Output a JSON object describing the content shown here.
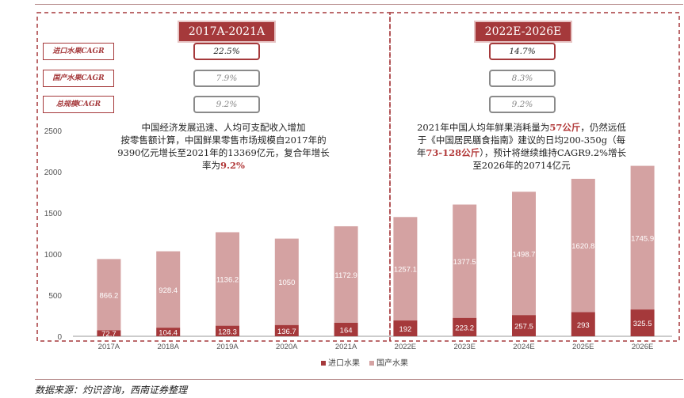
{
  "periods": [
    {
      "title": "2017A-2021A",
      "rows": [
        {
          "label": "进口水果CAGR",
          "value": "22.5%",
          "active": true
        },
        {
          "label": "国产水果CAGR",
          "value": "7.9%",
          "active": false
        },
        {
          "label": "总规模CAGR",
          "value": "9.2%",
          "active": false
        }
      ],
      "note_lines": [
        [
          {
            "t": "中国经济发展迅速、人均可支配收入增加"
          }
        ],
        [
          {
            "t": "按零售额计算，中国鲜果零售市场规模自2017年的"
          }
        ],
        [
          {
            "t": "9390亿元增长至2021年的13369亿元，复合年增长"
          }
        ],
        [
          {
            "t": "率为"
          },
          {
            "t": "9.2%",
            "hl": true
          }
        ]
      ]
    },
    {
      "title": "2022E-2026E",
      "rows": [
        {
          "label": "进口水果CAGR",
          "value": "14.7%",
          "active": true
        },
        {
          "label": "国产水果CAGR",
          "value": "8.3%",
          "active": false
        },
        {
          "label": "总规模CAGR",
          "value": "9.2%",
          "active": false
        }
      ],
      "note_lines": [
        [
          {
            "t": "2021年中国人均年鲜果消耗量为"
          },
          {
            "t": "57公斤",
            "hl": true
          },
          {
            "t": "，仍然远低"
          }
        ],
        [
          {
            "t": "于《中国居民膳食指南》建议的日均200-350g（每"
          }
        ],
        [
          {
            "t": "年"
          },
          {
            "t": "73-128公斤",
            "hl": true
          },
          {
            "t": "），预计将继续维持CAGR9.2%增长"
          }
        ],
        [
          {
            "t": "至2026年的20714亿元"
          }
        ]
      ]
    }
  ],
  "source": "数据来源：灼识咨询，西南证券整理",
  "colors": {
    "import": "#a5393b",
    "domestic": "#d4a2a2",
    "accent": "#a5393b"
  },
  "chart_data": {
    "type": "bar",
    "stacked": true,
    "categories": [
      "2017A",
      "2018A",
      "2019A",
      "2020A",
      "2021A",
      "2022E",
      "2023E",
      "2024E",
      "2025E",
      "2026E"
    ],
    "series": [
      {
        "name": "进口水果",
        "values": [
          72.7,
          104.4,
          128.3,
          136.7,
          164,
          192,
          223.2,
          257.5,
          293,
          325.5
        ]
      },
      {
        "name": "国产水果",
        "values": [
          866.2,
          928.4,
          1136.2,
          1050,
          1172.9,
          1257.1,
          1377.5,
          1498.7,
          1620.8,
          1745.9
        ]
      }
    ],
    "data_labels": {
      "import": [
        "72.7",
        "104.4",
        "128.3",
        "136.7",
        "164",
        "192",
        "223.2",
        "257.5",
        "293",
        "325.5"
      ],
      "domestic": [
        "866.2",
        "928.4",
        "1136.2",
        "1050",
        "1172.9",
        "1257.1",
        "1377.5",
        "1498.7",
        "1620.8",
        "1745.9"
      ]
    },
    "yticks": [
      0,
      500,
      1000,
      1500,
      2000,
      2500
    ],
    "ylim": [
      0,
      2500
    ],
    "legend": "bottom"
  }
}
